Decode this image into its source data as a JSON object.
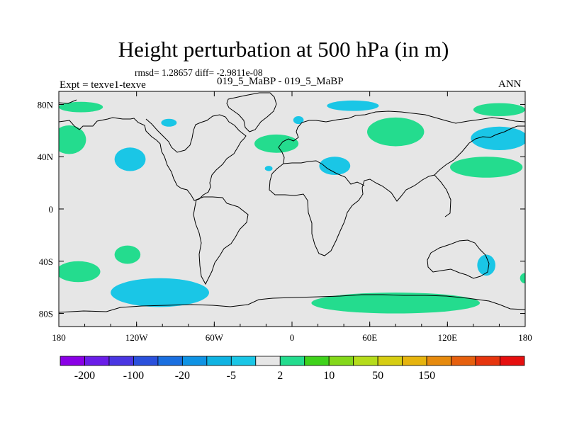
{
  "chart_data": {
    "type": "heatmap",
    "title": "Height perturbation at 500 hPa (in m)",
    "stats_label": "rmsd= 1.28657  diff= -2.9811e-08",
    "left_label": "Expt = texve1-texve",
    "center_label": "019_5_MaBP - 019_5_MaBP",
    "right_label": "ANN",
    "x_ticks": [
      "180",
      "120W",
      "60W",
      "0",
      "60E",
      "120E",
      "180"
    ],
    "y_ticks": [
      "80N",
      "40N",
      "0",
      "40S",
      "80S"
    ],
    "lon_range": [
      -180,
      180
    ],
    "lat_range": [
      -90,
      90
    ],
    "colorbar": {
      "colors": [
        "#8a00e6",
        "#6a1de8",
        "#4a36e2",
        "#2a50dc",
        "#1a6fe0",
        "#0f93e4",
        "#10b3e2",
        "#1ac6e6",
        "#e6e6e6",
        "#24dc8e",
        "#3fd21b",
        "#84d81a",
        "#b5dc1b",
        "#d6cd12",
        "#e6b40e",
        "#e68a0e",
        "#e6600e",
        "#e6350e",
        "#e60f0f"
      ],
      "label_positions": [
        1,
        3,
        5,
        7,
        9,
        11,
        13,
        15
      ],
      "labels": [
        "-200",
        "-100",
        "-20",
        "-5",
        "2",
        "10",
        "50",
        "150"
      ]
    },
    "anomalies": [
      {
        "sign": "negative",
        "lon": -125,
        "lat": 38,
        "rlon": 12,
        "rlat": 9
      },
      {
        "sign": "negative",
        "lon": -102,
        "lat": -64,
        "rlon": 38,
        "rlat": 11
      },
      {
        "sign": "negative",
        "lon": 47,
        "lat": 79,
        "rlon": 20,
        "rlat": 4
      },
      {
        "sign": "negative",
        "lon": 33,
        "lat": 33,
        "rlon": 12,
        "rlat": 7
      },
      {
        "sign": "negative",
        "lon": -18,
        "lat": 31,
        "rlon": 3,
        "rlat": 2
      },
      {
        "sign": "negative",
        "lon": 160,
        "lat": 54,
        "rlon": 22,
        "rlat": 9
      },
      {
        "sign": "negative",
        "lon": 150,
        "lat": -43,
        "rlon": 7,
        "rlat": 8
      },
      {
        "sign": "negative",
        "lon": 5,
        "lat": 68,
        "rlon": 4,
        "rlat": 3
      },
      {
        "sign": "negative",
        "lon": -95,
        "lat": 66,
        "rlon": 6,
        "rlat": 3
      },
      {
        "sign": "positive",
        "lon": -163,
        "lat": 78,
        "rlon": 17,
        "rlat": 4
      },
      {
        "sign": "positive",
        "lon": -172,
        "lat": 53,
        "rlon": 13,
        "rlat": 11
      },
      {
        "sign": "positive",
        "lon": -12,
        "lat": 50,
        "rlon": 17,
        "rlat": 7
      },
      {
        "sign": "positive",
        "lon": 80,
        "lat": 59,
        "rlon": 22,
        "rlat": 11
      },
      {
        "sign": "positive",
        "lon": 150,
        "lat": 32,
        "rlon": 28,
        "rlat": 8
      },
      {
        "sign": "positive",
        "lon": 160,
        "lat": 76,
        "rlon": 20,
        "rlat": 5
      },
      {
        "sign": "positive",
        "lon": -127,
        "lat": -35,
        "rlon": 10,
        "rlat": 7
      },
      {
        "sign": "positive",
        "lon": -165,
        "lat": -48,
        "rlon": 17,
        "rlat": 8
      },
      {
        "sign": "positive",
        "lon": 80,
        "lat": -72,
        "rlon": 65,
        "rlat": 8
      },
      {
        "sign": "positive",
        "lon": 180,
        "lat": -53,
        "rlon": 4,
        "rlat": 4
      }
    ]
  }
}
